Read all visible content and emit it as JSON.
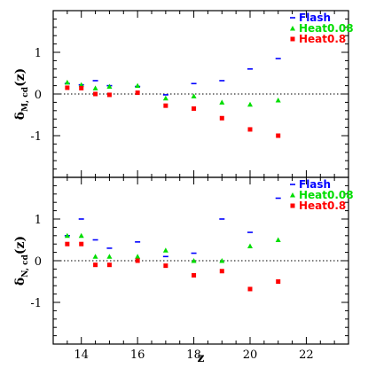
{
  "chart_data": [
    {
      "type": "scatter",
      "title": "",
      "xlabel": "",
      "ylabel": "δ_{M, cd}(z)",
      "ylabel_main": "δ",
      "ylabel_sub": "M, cd",
      "ylabel_tail": "(z)",
      "xlim": [
        13,
        23.5
      ],
      "ylim": [
        -2,
        2
      ],
      "x_ticks": [
        14,
        16,
        18,
        20,
        22
      ],
      "y_ticks": [
        -1,
        0,
        1
      ],
      "show_x_ticklabels": false,
      "zero_line": true,
      "legend_position": "top-right",
      "series": [
        {
          "name": "Flash",
          "marker": "dash",
          "color": "#0000ff",
          "points": [
            [
              13.5,
              0.25
            ],
            [
              14,
              0.22
            ],
            [
              14.5,
              0.32
            ],
            [
              15,
              0.2
            ],
            [
              16,
              0.18
            ],
            [
              17,
              -0.02
            ],
            [
              18,
              0.25
            ],
            [
              19,
              0.32
            ],
            [
              20,
              0.6
            ],
            [
              21,
              0.85
            ]
          ]
        },
        {
          "name": "Heat0.08",
          "marker": "triangle",
          "color": "#00dd00",
          "points": [
            [
              13.5,
              0.28
            ],
            [
              14,
              0.22
            ],
            [
              14.5,
              0.14
            ],
            [
              15,
              0.18
            ],
            [
              16,
              0.2
            ],
            [
              17,
              -0.1
            ],
            [
              18,
              -0.05
            ],
            [
              19,
              -0.2
            ],
            [
              20,
              -0.25
            ],
            [
              21,
              -0.15
            ]
          ]
        },
        {
          "name": "Heat0.8",
          "marker": "square",
          "color": "#ff0000",
          "points": [
            [
              13.5,
              0.15
            ],
            [
              14,
              0.14
            ],
            [
              14.5,
              0.0
            ],
            [
              15,
              -0.02
            ],
            [
              16,
              0.03
            ],
            [
              17,
              -0.28
            ],
            [
              18,
              -0.35
            ],
            [
              19,
              -0.58
            ],
            [
              20,
              -0.85
            ],
            [
              21,
              -1.0
            ]
          ]
        }
      ]
    },
    {
      "type": "scatter",
      "title": "",
      "xlabel": "z",
      "ylabel": "δ_{N, cd}(z)",
      "ylabel_main": "δ",
      "ylabel_sub": "N, cd",
      "ylabel_tail": "(z)",
      "xlim": [
        13,
        23.5
      ],
      "ylim": [
        -2,
        2
      ],
      "x_ticks": [
        14,
        16,
        18,
        20,
        22
      ],
      "y_ticks": [
        -1,
        0,
        1
      ],
      "show_x_ticklabels": true,
      "zero_line": true,
      "legend_position": "top-right",
      "series": [
        {
          "name": "Flash",
          "marker": "dash",
          "color": "#0000ff",
          "points": [
            [
              13.5,
              0.6
            ],
            [
              14,
              1.0
            ],
            [
              14.5,
              0.5
            ],
            [
              15,
              0.3
            ],
            [
              16,
              0.45
            ],
            [
              17,
              0.1
            ],
            [
              18,
              0.18
            ],
            [
              19,
              1.0
            ],
            [
              20,
              0.68
            ],
            [
              21,
              1.5
            ]
          ]
        },
        {
          "name": "Heat0.08",
          "marker": "triangle",
          "color": "#00dd00",
          "points": [
            [
              13.5,
              0.6
            ],
            [
              14,
              0.6
            ],
            [
              14.5,
              0.1
            ],
            [
              15,
              0.1
            ],
            [
              16,
              0.1
            ],
            [
              17,
              0.25
            ],
            [
              18,
              0.0
            ],
            [
              19,
              0.0
            ],
            [
              20,
              0.35
            ],
            [
              21,
              0.5
            ]
          ]
        },
        {
          "name": "Heat0.8",
          "marker": "square",
          "color": "#ff0000",
          "points": [
            [
              13.5,
              0.4
            ],
            [
              14,
              0.4
            ],
            [
              14.5,
              -0.1
            ],
            [
              15,
              -0.1
            ],
            [
              16,
              0.0
            ],
            [
              17,
              -0.12
            ],
            [
              18,
              -0.35
            ],
            [
              19,
              -0.25
            ],
            [
              20,
              -0.68
            ],
            [
              21,
              -0.5
            ]
          ]
        }
      ]
    }
  ]
}
